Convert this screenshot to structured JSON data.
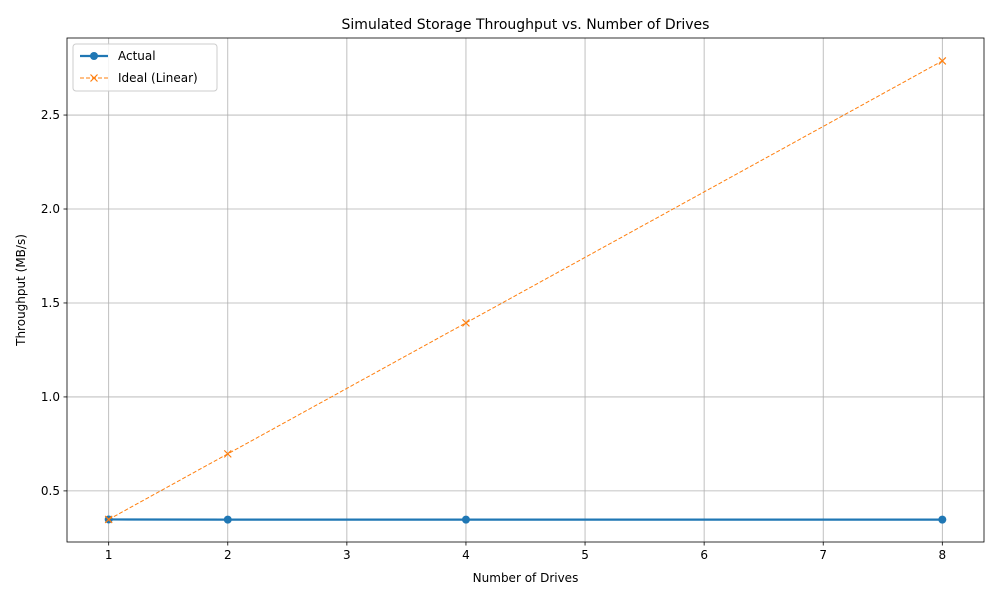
{
  "chart_data": {
    "type": "line",
    "title": "Simulated Storage Throughput vs. Number of Drives",
    "xlabel": "Number of Drives",
    "ylabel": "Throughput (MB/s)",
    "x": [
      1,
      2,
      4,
      8
    ],
    "xlim": [
      0.65,
      8.35
    ],
    "ylim": [
      0.228,
      2.91
    ],
    "xticks": [
      "1",
      "2",
      "3",
      "4",
      "5",
      "6",
      "7",
      "8"
    ],
    "yticks": [
      "0.5",
      "1.0",
      "1.5",
      "2.0",
      "2.5"
    ],
    "grid": true,
    "legend_position": "top-left",
    "series": [
      {
        "name": "Actual",
        "values": [
          0.348,
          0.347,
          0.347,
          0.347
        ],
        "color": "#1f77b4",
        "marker": "circle",
        "linestyle": "solid"
      },
      {
        "name": "Ideal (Linear)",
        "values": [
          0.348,
          0.697,
          1.394,
          2.788
        ],
        "color": "#ff7f0e",
        "marker": "x",
        "linestyle": "dashed"
      }
    ]
  }
}
